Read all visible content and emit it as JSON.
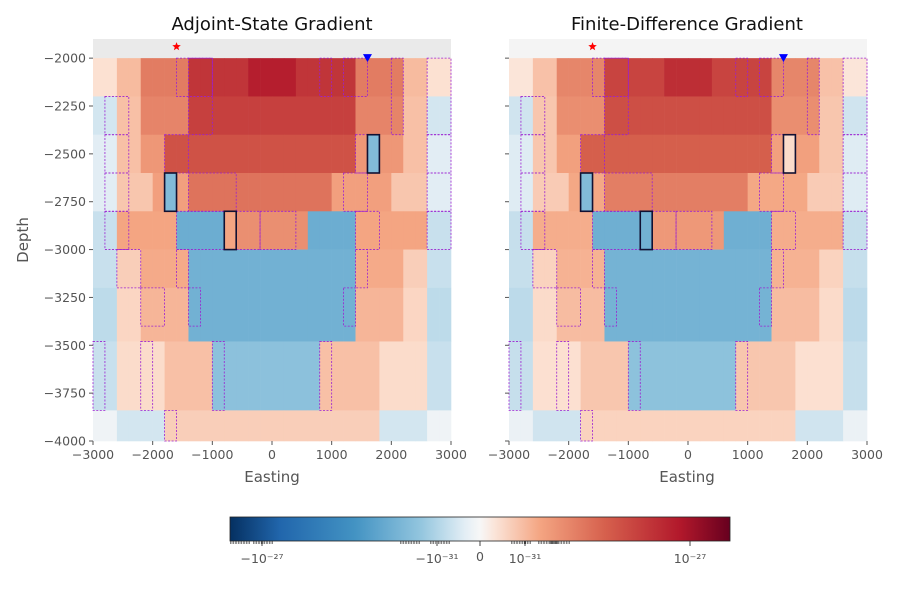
{
  "chart_data": [
    {
      "type": "heatmap",
      "title": "Adjoint-State Gradient",
      "xlabel": "Easting",
      "ylabel": "Depth",
      "xlim": [
        -3000,
        3000
      ],
      "ylim": [
        -4000,
        -1900
      ],
      "xticks": [
        "−3000",
        "−2000",
        "−1000",
        "0",
        "1000",
        "2000",
        "3000"
      ],
      "yticks": [
        "−2000",
        "−2250",
        "−2500",
        "−2750",
        "−3000",
        "−3250",
        "−3500",
        "−3750",
        "−4000"
      ],
      "source_marker": {
        "x": -1600,
        "y": -1950,
        "symbol": "star",
        "color": "#ff0000"
      },
      "receiver_marker": {
        "x": 1600,
        "y": -2000,
        "symbol": "triangle-down",
        "color": "#0000ff"
      }
    },
    {
      "type": "heatmap",
      "title": "Finite-Difference Gradient",
      "xlabel": "Easting",
      "ylabel": "",
      "xlim": [
        -3000,
        3000
      ],
      "ylim": [
        -4000,
        -1900
      ],
      "xticks": [
        "−3000",
        "−2000",
        "−1000",
        "0",
        "1000",
        "2000",
        "3000"
      ],
      "source_marker": {
        "x": -1600,
        "y": -1950,
        "symbol": "star",
        "color": "#ff0000"
      },
      "receiver_marker": {
        "x": 1600,
        "y": -2000,
        "symbol": "triangle-down",
        "color": "#0000ff"
      }
    }
  ],
  "colorbar": {
    "colormap": "RdBu_r",
    "scale": "symlog",
    "tick_labels": [
      "−10⁻²⁷",
      "−10⁻³¹",
      "0",
      "10⁻³¹",
      "10⁻²⁷"
    ]
  },
  "colors": {
    "plot_background": "#eaeaea",
    "cell_outline": "#9b1fd1",
    "highlight_outline": "#111133"
  }
}
